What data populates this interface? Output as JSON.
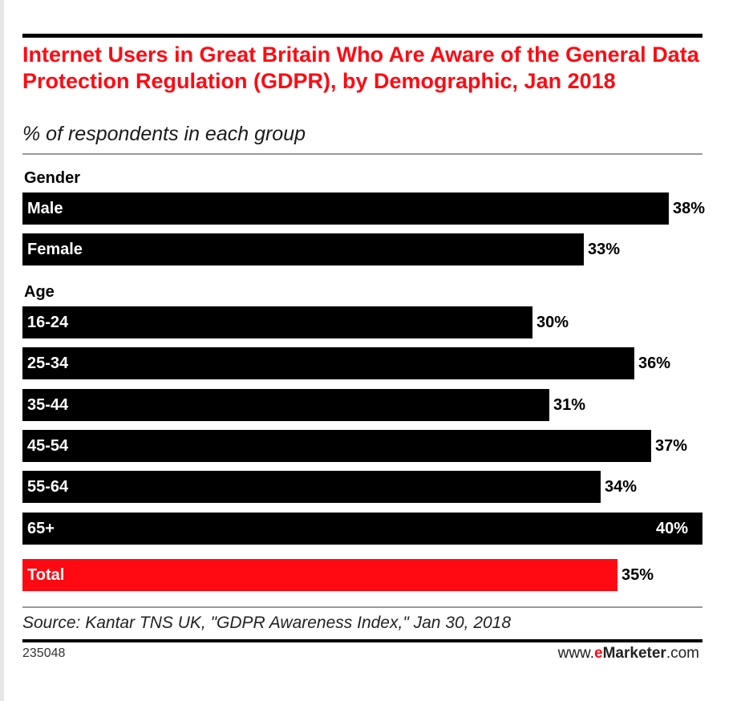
{
  "chart_data": {
    "type": "bar",
    "orientation": "horizontal",
    "title": "Internet Users in Great Britain Who Are Aware of the General Data Protection Regulation (GDPR), by Demographic, Jan 2018",
    "subtitle": "% of respondents in each group",
    "groups": [
      {
        "label": "Gender",
        "categories": [
          "Male",
          "Female"
        ],
        "values": [
          38,
          33
        ],
        "value_labels": [
          "38%",
          "33%"
        ]
      },
      {
        "label": "Age",
        "categories": [
          "16-24",
          "25-34",
          "35-44",
          "45-54",
          "55-64",
          "65+"
        ],
        "values": [
          30,
          36,
          31,
          37,
          34,
          40
        ],
        "value_labels": [
          "30%",
          "36%",
          "31%",
          "37%",
          "34%",
          "40%"
        ]
      },
      {
        "label": "",
        "categories": [
          "Total"
        ],
        "values": [
          35
        ],
        "value_labels": [
          "35%"
        ],
        "highlight": true
      }
    ],
    "xlim": [
      0,
      40
    ],
    "grid": false,
    "colors": {
      "bar": "#000000",
      "highlight": "#ff0a12",
      "title": "#ff0a12"
    }
  },
  "footer": {
    "source": "Source: Kantar TNS UK, \"GDPR Awareness Index,\" Jan 30, 2018",
    "chart_id": "235048",
    "brand_prefix": "www.",
    "brand_accent": "e",
    "brand_name": "Marketer",
    "brand_suffix": ".com"
  }
}
